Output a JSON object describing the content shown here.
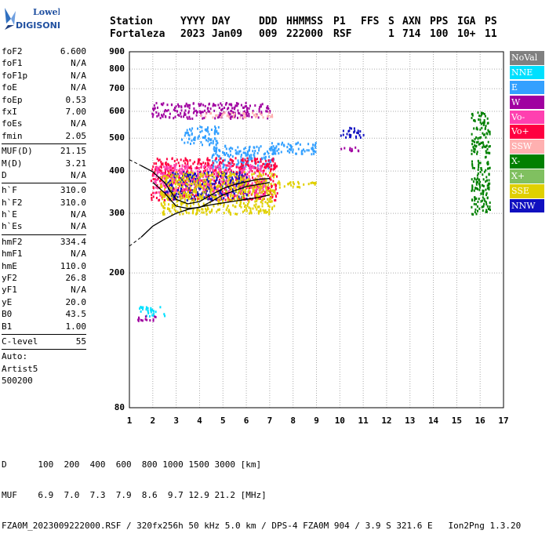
{
  "logo": {
    "line1": "Lowell",
    "line2": "DIGISONDE"
  },
  "header": {
    "labels": [
      "Station",
      "YYYY",
      "DAY",
      "DDD",
      "HHMMSS",
      "P1",
      "FFS",
      "S",
      "AXN",
      "PPS",
      "IGA",
      "PS"
    ],
    "values": [
      "Fortaleza",
      "2023",
      "Jan09",
      "009",
      "222000",
      "RSF",
      "",
      "1",
      "714",
      "100",
      "10+",
      "11"
    ]
  },
  "params": {
    "group1": [
      [
        "foF2",
        "6.600"
      ],
      [
        "foF1",
        "N/A"
      ],
      [
        "foF1p",
        "N/A"
      ],
      [
        "foE",
        "N/A"
      ],
      [
        "foEp",
        "0.53"
      ],
      [
        "fxI",
        "7.00"
      ],
      [
        "foEs",
        "N/A"
      ],
      [
        "fmin",
        "2.05"
      ]
    ],
    "group2": [
      [
        "MUF(D)",
        "21.15"
      ],
      [
        "M(D)",
        "3.21"
      ],
      [
        "D",
        "N/A"
      ]
    ],
    "group3": [
      [
        "h`F",
        "310.0"
      ],
      [
        "h`F2",
        "310.0"
      ],
      [
        "h`E",
        "N/A"
      ],
      [
        "h`Es",
        "N/A"
      ]
    ],
    "group4": [
      [
        "hmF2",
        "334.4"
      ],
      [
        "hmF1",
        "N/A"
      ],
      [
        "hmE",
        "110.0"
      ],
      [
        "yF2",
        "26.8"
      ],
      [
        "yF1",
        "N/A"
      ],
      [
        "yE",
        "20.0"
      ],
      [
        "B0",
        "43.5"
      ],
      [
        "B1",
        "1.00"
      ]
    ],
    "clevel": [
      "C-level",
      "55"
    ],
    "auto": [
      "Auto:",
      "Artist5",
      "500200"
    ]
  },
  "legend": [
    {
      "label": "NoVal",
      "color": "#808080"
    },
    {
      "label": "NNE",
      "color": "#00e0ff"
    },
    {
      "label": "E",
      "color": "#33a0ff"
    },
    {
      "label": "W",
      "color": "#a000a0"
    },
    {
      "label": "Vo-",
      "color": "#ff40b0"
    },
    {
      "label": "Vo+",
      "color": "#ff0040"
    },
    {
      "label": "SSW",
      "color": "#ffb0b0"
    },
    {
      "label": "X-",
      "color": "#008000"
    },
    {
      "label": "X+",
      "color": "#80c060"
    },
    {
      "label": "SSE",
      "color": "#e0d000"
    },
    {
      "label": "NNW",
      "color": "#1010c0"
    }
  ],
  "footer": {
    "dist_label": "D",
    "dist_values": [
      "100",
      "200",
      "400",
      "600",
      "800",
      "1000",
      "1500",
      "3000"
    ],
    "dist_unit": "[km]",
    "muf_label": "MUF",
    "muf_values": [
      "6.9",
      "7.0",
      "7.3",
      "7.9",
      "8.6",
      "9.7",
      "12.9",
      "21.2"
    ],
    "muf_unit": "[MHz]",
    "file_line": "FZA0M_2023009222000.RSF / 320fx256h 50 kHz 5.0 km / DPS-4 FZA0M 904 / 3.9 S 321.6 E   Ion2Png 1.3.20"
  },
  "chart_data": {
    "type": "scatter",
    "xlabel": "",
    "ylabel": "",
    "xlim": [
      1,
      17
    ],
    "ylim": [
      80,
      900
    ],
    "x_ticks": [
      1,
      2,
      3,
      4,
      5,
      6,
      7,
      8,
      9,
      10,
      11,
      12,
      13,
      14,
      15,
      16,
      17
    ],
    "y_ticks": [
      80,
      200,
      300,
      400,
      500,
      600,
      700,
      800,
      900
    ],
    "y_scale": "log",
    "grid": true,
    "legend_placement": "right",
    "clusters": [
      {
        "series": "W",
        "x": [
          1.9,
          7.0
        ],
        "y": [
          575,
          640
        ]
      },
      {
        "series": "SSW",
        "x": [
          4.0,
          7.2
        ],
        "y": [
          580,
          600
        ]
      },
      {
        "series": "E",
        "x": [
          3.2,
          4.8
        ],
        "y": [
          480,
          545
        ]
      },
      {
        "series": "E",
        "x": [
          4.5,
          7.2
        ],
        "y": [
          410,
          480
        ]
      },
      {
        "series": "E",
        "x": [
          7.0,
          9.0
        ],
        "y": [
          450,
          490
        ]
      },
      {
        "series": "Vo+",
        "x": [
          1.9,
          7.3
        ],
        "y": [
          330,
          440
        ]
      },
      {
        "series": "Vo-",
        "x": [
          2.0,
          6.8
        ],
        "y": [
          340,
          420
        ]
      },
      {
        "series": "NNW",
        "x": [
          2.5,
          6.0
        ],
        "y": [
          330,
          400
        ]
      },
      {
        "series": "SSE",
        "x": [
          2.3,
          7.2
        ],
        "y": [
          300,
          400
        ]
      },
      {
        "series": "SSE",
        "x": [
          7.3,
          9.0
        ],
        "y": [
          360,
          375
        ]
      },
      {
        "series": "NNW",
        "x": [
          10.0,
          11.0
        ],
        "y": [
          505,
          540
        ]
      },
      {
        "series": "W",
        "x": [
          10.0,
          10.8
        ],
        "y": [
          460,
          475
        ]
      },
      {
        "series": "X-",
        "x": [
          15.6,
          16.4
        ],
        "y": [
          300,
          600
        ]
      },
      {
        "series": "NNE",
        "x": [
          1.4,
          2.5
        ],
        "y": [
          150,
          160
        ]
      },
      {
        "series": "W",
        "x": [
          1.3,
          2.3
        ],
        "y": [
          145,
          150
        ]
      }
    ],
    "curves": [
      {
        "name": "profile",
        "x": [
          1.0,
          1.5,
          2.0,
          2.5,
          3.0,
          3.5,
          4.0,
          4.5,
          5.0,
          5.5,
          6.0,
          6.5,
          7.0
        ],
        "y": [
          240,
          255,
          275,
          288,
          300,
          308,
          313,
          318,
          322,
          326,
          330,
          334,
          340
        ],
        "dashed_until": 1.8
      },
      {
        "name": "hF-upper",
        "x": [
          1.0,
          1.5,
          2.0,
          2.5,
          3.0,
          3.5,
          4.0,
          4.5,
          5.0,
          5.5,
          6.0,
          6.5,
          7.0
        ],
        "y": [
          432,
          415,
          398,
          370,
          330,
          320,
          325,
          340,
          355,
          365,
          372,
          378,
          380
        ],
        "dashed_until": 1.8
      },
      {
        "name": "hF-lower",
        "x": [
          2.0,
          2.5,
          3.0,
          3.5,
          4.0,
          4.5,
          5.0,
          5.5,
          6.0,
          6.5,
          7.0
        ],
        "y": [
          370,
          345,
          315,
          310,
          312,
          325,
          340,
          350,
          360,
          365,
          370
        ]
      }
    ]
  }
}
